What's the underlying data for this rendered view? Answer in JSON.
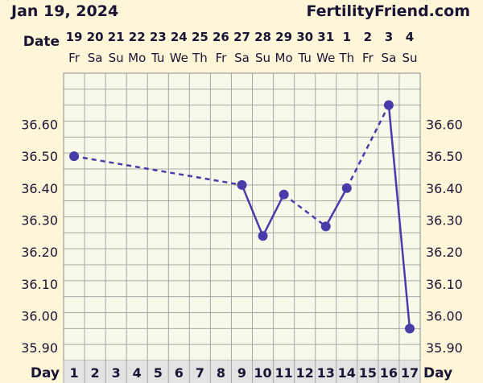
{
  "header": {
    "date_title": "Jan 19, 2024",
    "site_name": "FertilityFriend.com"
  },
  "chart_data": {
    "type": "line",
    "top_label": "Date",
    "bottom_label": "Day",
    "dates": [
      "19",
      "20",
      "21",
      "22",
      "23",
      "24",
      "25",
      "26",
      "27",
      "28",
      "29",
      "30",
      "31",
      "1",
      "2",
      "3",
      "4"
    ],
    "weekdays": [
      "Fr",
      "Sa",
      "Su",
      "Mo",
      "Tu",
      "We",
      "Th",
      "Fr",
      "Sa",
      "Su",
      "Mo",
      "Tu",
      "We",
      "Th",
      "Fr",
      "Sa",
      "Su"
    ],
    "days": [
      "1",
      "2",
      "3",
      "4",
      "5",
      "6",
      "7",
      "8",
      "9",
      "10",
      "11",
      "12",
      "13",
      "14",
      "15",
      "16",
      "17"
    ],
    "y_ticks": [
      "35.90",
      "36.00",
      "36.10",
      "36.20",
      "36.30",
      "36.40",
      "36.50",
      "36.60"
    ],
    "ylim": [
      35.86,
      36.76
    ],
    "grid": true,
    "series": [
      {
        "points": [
          {
            "day": 1,
            "temp": 36.5
          },
          {
            "day": 9,
            "temp": 36.41
          },
          {
            "day": 10,
            "temp": 36.25
          },
          {
            "day": 11,
            "temp": 36.38
          },
          {
            "day": 13,
            "temp": 36.28
          },
          {
            "day": 14,
            "temp": 36.4
          },
          {
            "day": 16,
            "temp": 36.66
          },
          {
            "day": 17,
            "temp": 35.96
          }
        ]
      }
    ],
    "colors": {
      "background": "#fdf6d8",
      "plot_bg": "#f8f9ea",
      "grid": "#a7a7a7",
      "line": "#4a3bab",
      "text": "#1a1535",
      "day_band": "#e3e3e3"
    }
  }
}
